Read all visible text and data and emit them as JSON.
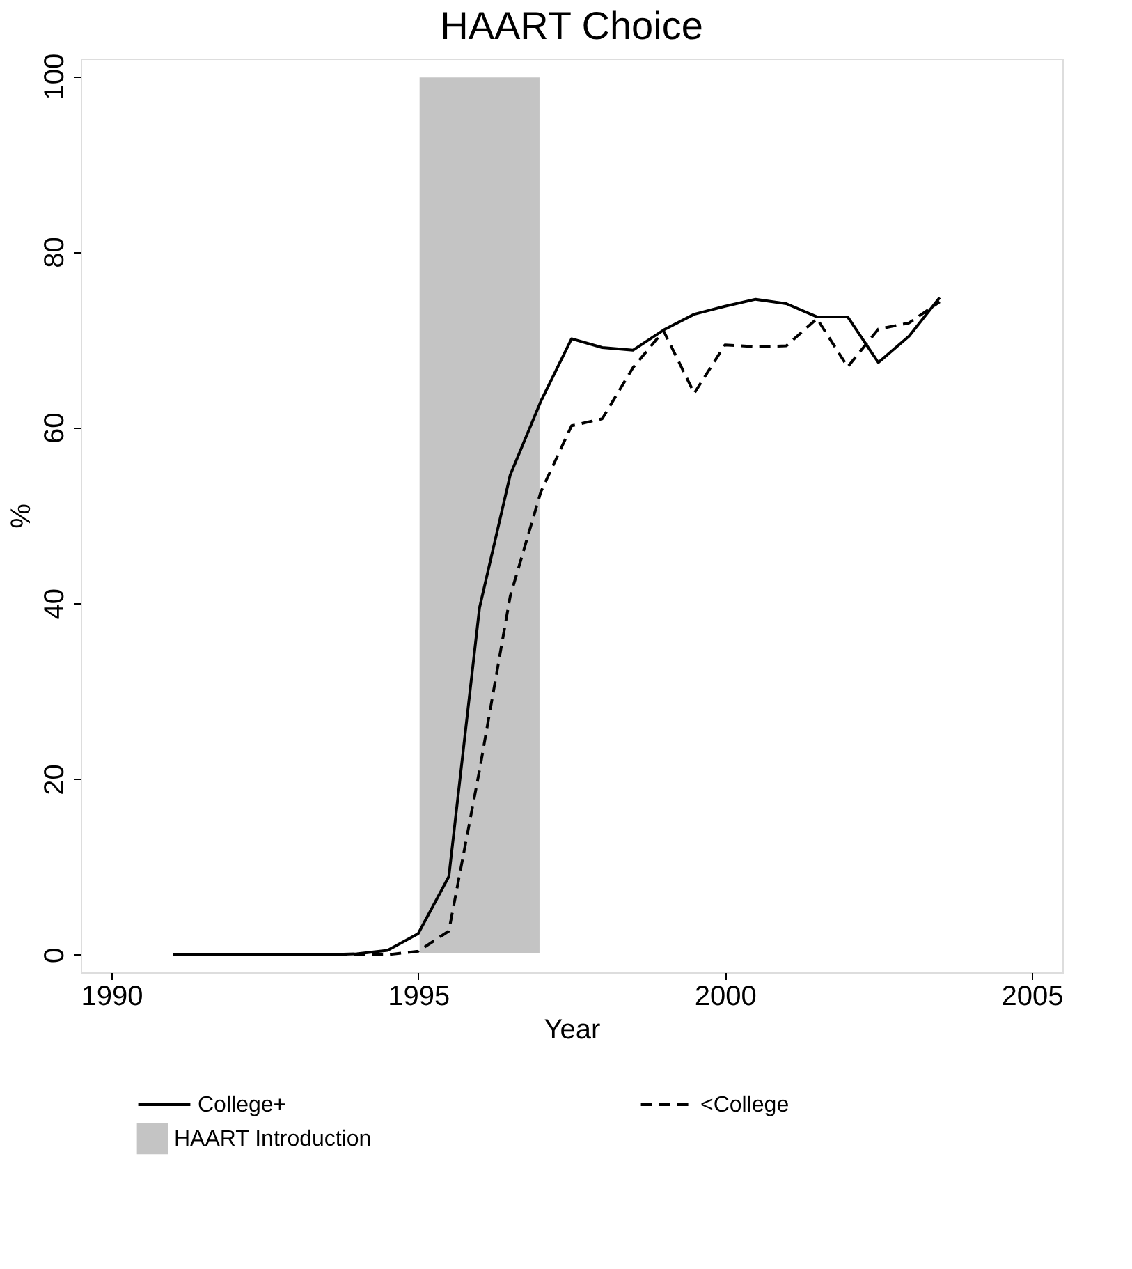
{
  "chart_data": {
    "type": "line",
    "title": "HAART Choice",
    "xlabel": "Year",
    "ylabel": "%",
    "x": [
      1991,
      1991.5,
      1992,
      1992.5,
      1993,
      1993.5,
      1994,
      1994.5,
      1995,
      1995.5,
      1996,
      1996.5,
      1997,
      1997.5,
      1998,
      1998.5,
      1999,
      1999.5,
      2000,
      2000.5,
      2001,
      2001.5,
      2002,
      2002.5,
      2003,
      2003.5
    ],
    "series": [
      {
        "name": "College+",
        "color": "#000000",
        "line_style": "solid",
        "values": [
          0,
          0,
          0,
          0,
          0,
          0,
          0.1,
          0.5,
          2.4,
          8.9,
          39.5,
          54.6,
          63,
          70.1,
          69.1,
          68.8,
          71.1,
          72.9,
          73.8,
          74.6,
          74.1,
          72.6,
          72.6,
          67.4,
          70.4,
          74.8
        ]
      },
      {
        "name": "<College",
        "color": "#000000",
        "line_style": "dashed",
        "values": [
          0,
          0,
          0,
          0,
          0,
          0,
          0,
          0,
          0.4,
          2.7,
          21,
          40.8,
          52.7,
          60.2,
          61,
          66.8,
          71,
          63.9,
          69.4,
          69.2,
          69.3,
          72.4,
          66.9,
          71.2,
          71.9,
          74.3
        ]
      }
    ],
    "bands": [
      {
        "axis": "x",
        "from": 1995,
        "to": 1997,
        "label": "HAART Introduction",
        "color": "#c4c4c4"
      }
    ],
    "xlim": [
      1989.5,
      2005.5
    ],
    "ylim": [
      -2,
      102
    ],
    "xticks": [
      1990,
      1995,
      2000,
      2005
    ],
    "yticks": [
      0,
      20,
      40,
      60,
      80,
      100
    ],
    "grid": false,
    "legend": "bottom"
  }
}
